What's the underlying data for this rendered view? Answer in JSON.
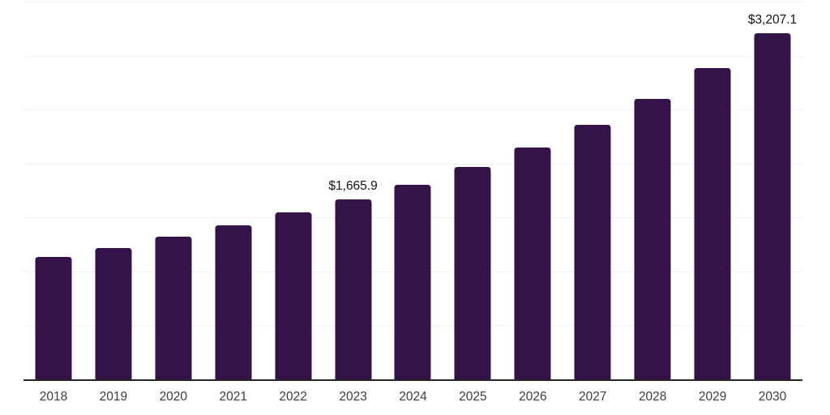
{
  "chart_data": {
    "type": "bar",
    "title": "",
    "xlabel": "",
    "ylabel": "",
    "categories": [
      "2018",
      "2019",
      "2020",
      "2021",
      "2022",
      "2023",
      "2024",
      "2025",
      "2026",
      "2027",
      "2028",
      "2029",
      "2030"
    ],
    "values": [
      1135,
      1217,
      1322,
      1427,
      1546,
      1665.9,
      1806,
      1965,
      2152,
      2362,
      2601,
      2886,
      3207.1
    ],
    "value_labels": [
      "",
      "",
      "",
      "",
      "",
      "$1,665.9",
      "",
      "",
      "",
      "",
      "",
      "",
      "$3,207.1"
    ],
    "ylim": [
      0,
      3516
    ],
    "gridline_values": [
      500,
      1000,
      1500,
      2000,
      2500,
      3000,
      3500
    ],
    "grid": "horizontal",
    "legend_position": "none",
    "colors": {
      "bar": "#341349",
      "gridline": "#f0f0f0",
      "axis_line": "#262626",
      "tick_label": "#3d3d3d",
      "value_label": "#141414",
      "background": "#ffffff"
    }
  }
}
